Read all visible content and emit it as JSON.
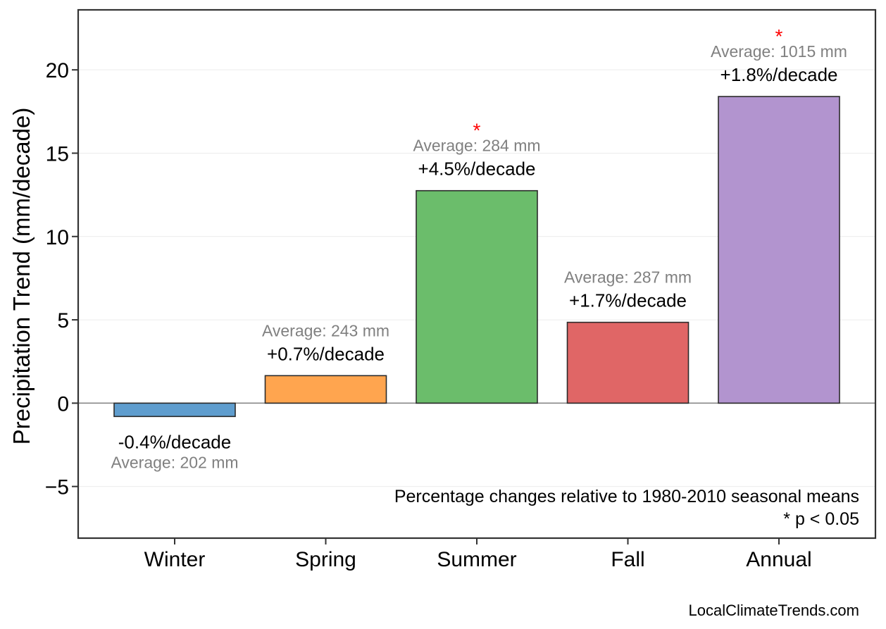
{
  "chart_data": {
    "type": "bar",
    "ylabel": "Precipitation Trend (mm/decade)",
    "ylim": [
      -8.1,
      23.6
    ],
    "yticks": [
      -5,
      0,
      5,
      10,
      15,
      20
    ],
    "ytick_labels": [
      "−5",
      "0",
      "5",
      "10",
      "15",
      "20"
    ],
    "grid": "horizontal",
    "categories": [
      "Winter",
      "Spring",
      "Summer",
      "Fall",
      "Annual"
    ],
    "values": [
      -0.8,
      1.65,
      12.75,
      4.85,
      18.4
    ],
    "colors": [
      "#5f9dce",
      "#ffa54f",
      "#6bbd6b",
      "#e06666",
      "#b294cf"
    ],
    "pct_labels": [
      "-0.4%/decade",
      "+0.7%/decade",
      "+4.5%/decade",
      "+1.7%/decade",
      "+1.8%/decade"
    ],
    "avg_labels": [
      "Average: 202 mm",
      "Average: 243 mm",
      "Average: 284 mm",
      "Average: 287 mm",
      "Average: 1015 mm"
    ],
    "significant": [
      false,
      false,
      true,
      false,
      true
    ],
    "significance_marker": "*",
    "note_lines": [
      "Percentage changes relative to 1980-2010 seasonal means",
      "* p < 0.05"
    ]
  },
  "footer": {
    "source": "LocalClimateTrends.com"
  }
}
